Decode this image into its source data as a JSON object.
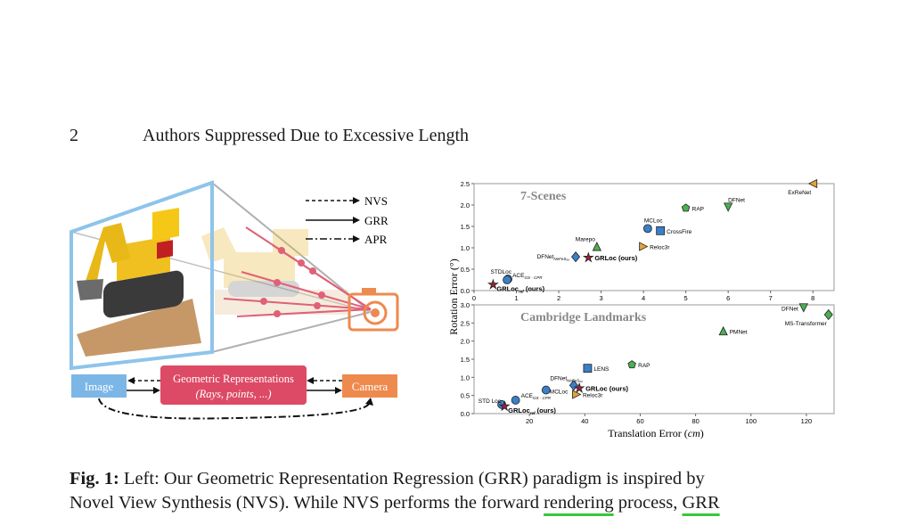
{
  "header": {
    "page_number": "2",
    "running_title": "Authors Suppressed Due to Excessive Length"
  },
  "left_figure": {
    "legend": [
      "NVS",
      "GRR",
      "APR"
    ],
    "boxes": {
      "image": "Image",
      "geo_title": "Geometric Representations",
      "geo_sub": "(Rays, points, ...)",
      "camera": "Camera"
    },
    "colors": {
      "image_box": "#7cb6e6",
      "geo_box": "#dd4a66",
      "camera_box": "#ee8a4e",
      "frame": "#8ec4ea",
      "rays": "#e06077"
    }
  },
  "chart_data": [
    {
      "type": "scatter",
      "title": "7-Scenes",
      "xlabel": "",
      "ylabel": "Rotation Error (°)",
      "xlim": [
        0,
        8.5
      ],
      "ylim": [
        0,
        2.5
      ],
      "xticks": [
        "0",
        "1",
        "2",
        "3",
        "4",
        "5",
        "6",
        "7",
        "8"
      ],
      "yticks": [
        "0.0",
        "0.5",
        "1.0",
        "1.5",
        "2.0",
        "2.5"
      ],
      "points": [
        {
          "label": "ExReNet",
          "x": 8.0,
          "y": 2.5,
          "marker": "triangle-left",
          "color": "#e0a33a"
        },
        {
          "label": "DFNet",
          "x": 6.0,
          "y": 1.95,
          "marker": "triangle-down",
          "color": "#4caf50"
        },
        {
          "label": "RAP",
          "x": 5.0,
          "y": 1.93,
          "marker": "pentagon",
          "color": "#4caf50"
        },
        {
          "label": "MCLoc",
          "x": 4.1,
          "y": 1.45,
          "marker": "circle",
          "color": "#3a7fc8"
        },
        {
          "label": "CrossFire",
          "x": 4.4,
          "y": 1.4,
          "marker": "square",
          "color": "#3a7fc8"
        },
        {
          "label": "Marepo",
          "x": 2.9,
          "y": 1.03,
          "marker": "triangle-up",
          "color": "#4caf50"
        },
        {
          "label": "Reloc3r",
          "x": 4.0,
          "y": 1.03,
          "marker": "triangle-right",
          "color": "#e0a33a"
        },
        {
          "label": "DFNet",
          "sub": "NeFeS₅₀",
          "x": 2.4,
          "y": 0.79,
          "marker": "diamond",
          "color": "#3a7fc8"
        },
        {
          "label": "GRLoc (ours)",
          "x": 2.7,
          "y": 0.77,
          "marker": "star",
          "color": "#a0203a",
          "bold": true
        },
        {
          "label": "STDLoc",
          "x": 0.8,
          "y": 0.27,
          "marker": "circle",
          "color": "#3a7fc8"
        },
        {
          "label": "ACE",
          "sub": "GS - CPR",
          "x": 0.78,
          "y": 0.25,
          "marker": "circle",
          "color": "#3a7fc8"
        },
        {
          "label": "GRLoc",
          "sub": "ref",
          "suffix": "(ours)",
          "x": 0.45,
          "y": 0.14,
          "marker": "star",
          "color": "#a0203a",
          "bold": true
        }
      ]
    },
    {
      "type": "scatter",
      "title": "Cambridge Landmarks",
      "xlabel": "Translation Error (cm)",
      "ylabel": "Rotation Error (°)",
      "xlim": [
        0,
        130
      ],
      "ylim": [
        0,
        3.0
      ],
      "xticks": [
        "20",
        "40",
        "60",
        "80",
        "100",
        "120"
      ],
      "yticks": [
        "0.0",
        "0.5",
        "1.0",
        "1.5",
        "2.0",
        "2.5",
        "3.0"
      ],
      "points": [
        {
          "label": "DFNet",
          "x": 119,
          "y": 2.92,
          "marker": "triangle-down",
          "color": "#4caf50"
        },
        {
          "label": "MS-Transformer",
          "x": 128,
          "y": 2.73,
          "marker": "diamond",
          "color": "#4caf50"
        },
        {
          "label": "PMNet",
          "x": 90,
          "y": 2.28,
          "marker": "triangle-up",
          "color": "#4caf50"
        },
        {
          "label": "RAP",
          "x": 57,
          "y": 1.35,
          "marker": "pentagon",
          "color": "#4caf50"
        },
        {
          "label": "LENS",
          "x": 41,
          "y": 1.25,
          "marker": "square",
          "color": "#3a7fc8"
        },
        {
          "label": "DFNet",
          "sub": "NeFeS₅₀",
          "x": 36,
          "y": 0.78,
          "marker": "diamond",
          "color": "#3a7fc8"
        },
        {
          "label": "GRLoc (ours)",
          "x": 38,
          "y": 0.7,
          "marker": "star",
          "color": "#a0203a",
          "bold": true
        },
        {
          "label": "MCLoc",
          "x": 26,
          "y": 0.65,
          "marker": "circle",
          "color": "#3a7fc8"
        },
        {
          "label": "Reloc3r",
          "x": 37,
          "y": 0.53,
          "marker": "triangle-right",
          "color": "#e0a33a"
        },
        {
          "label": "ACE",
          "sub": "GS - CPR",
          "x": 15,
          "y": 0.37,
          "marker": "circle",
          "color": "#3a7fc8"
        },
        {
          "label": "STD Loc",
          "x": 10,
          "y": 0.25,
          "marker": "circle",
          "color": "#3a7fc8"
        },
        {
          "label": "GRLoc",
          "sub": "ref",
          "suffix": "(ours)",
          "x": 11,
          "y": 0.2,
          "marker": "star",
          "color": "#a0203a",
          "bold": true
        }
      ]
    }
  ],
  "caption": {
    "label": "Fig. 1:",
    "line1": "Left: Our Geometric Representation Regression (GRR) paradigm is inspired by",
    "line2_a": "Novel View Synthesis (NVS). While NVS performs the forward ",
    "line2_u1": "rendering",
    "line2_b": " process, ",
    "line2_u2": "GRR"
  }
}
